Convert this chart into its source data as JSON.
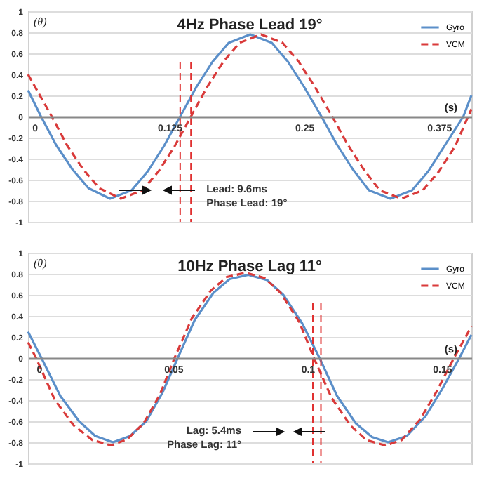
{
  "chart_data": [
    {
      "type": "line",
      "title": "4Hz Phase Lead 19°",
      "xlabel": "(s)",
      "ylabel": "(θ)",
      "xlim": [
        -0.006,
        0.405
      ],
      "xticks": [
        0,
        0.125,
        0.25,
        0.375
      ],
      "ylim": [
        -1,
        1
      ],
      "yticks": [
        -1,
        -0.8,
        -0.6,
        -0.4,
        -0.2,
        0,
        0.2,
        0.4,
        0.6,
        0.8,
        1
      ],
      "grid": "y",
      "legend": "top right",
      "series": [
        {
          "name": "Gyro",
          "color": "#5b8fc9",
          "line_style": "solid",
          "x": [
            -0.006,
            0.006,
            0.02,
            0.035,
            0.05,
            0.07,
            0.09,
            0.105,
            0.12,
            0.135,
            0.15,
            0.165,
            0.18,
            0.2,
            0.22,
            0.235,
            0.25,
            0.266,
            0.28,
            0.295,
            0.31,
            0.33,
            0.35,
            0.365,
            0.38,
            0.3975,
            0.405
          ],
          "values": [
            0.25,
            0,
            -0.27,
            -0.5,
            -0.68,
            -0.78,
            -0.7,
            -0.52,
            -0.28,
            0,
            0.28,
            0.52,
            0.7,
            0.78,
            0.7,
            0.52,
            0.28,
            0,
            -0.26,
            -0.5,
            -0.7,
            -0.78,
            -0.7,
            -0.52,
            -0.28,
            0,
            0.2
          ]
        },
        {
          "name": "VCM",
          "color": "#d93a3a",
          "line_style": "dashed",
          "x": [
            -0.006,
            0.016,
            0.03,
            0.045,
            0.06,
            0.08,
            0.1,
            0.115,
            0.13,
            0.145,
            0.16,
            0.175,
            0.19,
            0.21,
            0.23,
            0.245,
            0.26,
            0.276,
            0.29,
            0.305,
            0.32,
            0.34,
            0.36,
            0.375,
            0.39,
            0.402,
            0.405
          ],
          "values": [
            0.4,
            0,
            -0.27,
            -0.5,
            -0.68,
            -0.78,
            -0.7,
            -0.52,
            -0.28,
            0,
            0.28,
            0.52,
            0.7,
            0.78,
            0.7,
            0.52,
            0.28,
            0,
            -0.26,
            -0.5,
            -0.7,
            -0.78,
            -0.7,
            -0.52,
            -0.28,
            0,
            0.07
          ]
        }
      ],
      "ref_lines": [
        {
          "axis": "x",
          "value": 0.135,
          "color": "#e03030",
          "line_style": "dashed"
        },
        {
          "axis": "x",
          "value": 0.145,
          "color": "#e03030",
          "line_style": "dashed"
        }
      ],
      "annotations": [
        "Lead: 9.6ms",
        "Phase Lead: 19°"
      ]
    },
    {
      "type": "line",
      "title": "10Hz Phase Lag 11°",
      "xlabel": "(s)",
      "ylabel": "(θ)",
      "xlim": [
        -0.004,
        0.161
      ],
      "xticks": [
        0,
        0.05,
        0.1,
        0.15
      ],
      "ylim": [
        -1,
        1
      ],
      "yticks": [
        -1,
        -0.8,
        -0.6,
        -0.4,
        -0.2,
        0,
        0.2,
        0.4,
        0.6,
        0.8,
        1
      ],
      "grid": "y",
      "legend": "top right",
      "series": [
        {
          "name": "Gyro",
          "color": "#5b8fc9",
          "line_style": "solid",
          "x": [
            -0.004,
            0.001,
            0.008,
            0.015,
            0.021,
            0.0276,
            0.034,
            0.04,
            0.046,
            0.0517,
            0.058,
            0.065,
            0.071,
            0.078,
            0.085,
            0.091,
            0.098,
            0.1045,
            0.111,
            0.118,
            0.124,
            0.13,
            0.137,
            0.144,
            0.15,
            0.1565,
            0.161
          ],
          "values": [
            0.25,
            0,
            -0.36,
            -0.6,
            -0.74,
            -0.8,
            -0.74,
            -0.6,
            -0.33,
            0,
            0.36,
            0.62,
            0.75,
            0.79,
            0.74,
            0.6,
            0.33,
            0,
            -0.36,
            -0.62,
            -0.75,
            -0.8,
            -0.74,
            -0.55,
            -0.3,
            0,
            0.22
          ]
        },
        {
          "name": "VCM",
          "color": "#d93a3a",
          "line_style": "dashed",
          "x": [
            -0.004,
            -0.001,
            0.006,
            0.013,
            0.02,
            0.027,
            0.033,
            0.039,
            0.045,
            0.0505,
            0.057,
            0.064,
            0.07,
            0.077,
            0.084,
            0.09,
            0.097,
            0.1024,
            0.109,
            0.116,
            0.122,
            0.129,
            0.135,
            0.142,
            0.148,
            0.1545,
            0.161
          ],
          "values": [
            0.15,
            0,
            -0.4,
            -0.64,
            -0.78,
            -0.83,
            -0.77,
            -0.62,
            -0.35,
            0,
            0.38,
            0.64,
            0.77,
            0.81,
            0.76,
            0.62,
            0.34,
            0,
            -0.38,
            -0.64,
            -0.78,
            -0.83,
            -0.78,
            -0.58,
            -0.32,
            0,
            0.3
          ]
        }
      ],
      "ref_lines": [
        {
          "axis": "x",
          "value": 0.102,
          "color": "#e03030",
          "line_style": "dashed"
        },
        {
          "axis": "x",
          "value": 0.105,
          "color": "#e03030",
          "line_style": "dashed"
        }
      ],
      "annotations": [
        "Lag: 5.4ms",
        "Phase Lag: 11°"
      ]
    }
  ]
}
